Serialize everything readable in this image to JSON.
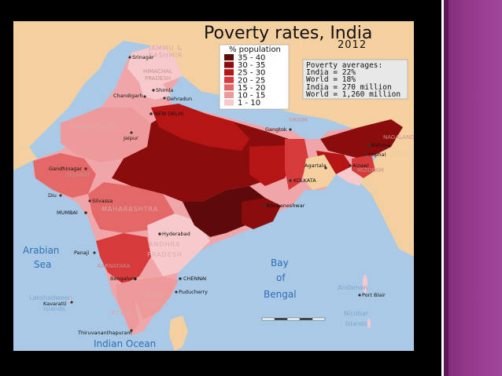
{
  "map": {
    "title": "Poverty rates, India",
    "year": "2012",
    "legend": {
      "title": "% population",
      "items": [
        {
          "label": "35 - 40",
          "color": "#5e0a0a"
        },
        {
          "label": "30 - 35",
          "color": "#8b0c0c"
        },
        {
          "label": "25 - 30",
          "color": "#b51515"
        },
        {
          "label": "20 - 25",
          "color": "#d63a3a"
        },
        {
          "label": "15 - 20",
          "color": "#e46868"
        },
        {
          "label": "10 - 15",
          "color": "#ee9a9a"
        },
        {
          "label": "1 - 10",
          "color": "#f6c9cc"
        }
      ]
    },
    "averages": {
      "title": "Poverty averages:",
      "line1": "India = 22%",
      "line2": "World = 18%",
      "line3": "India  =    270 million",
      "line4": "World = 1,260 million"
    },
    "cities": {
      "srinagar": "Srinagar",
      "shimla": "Shimla",
      "chandigarh": "Chandigarh",
      "dehradun": "Dehradun",
      "new_delhi": "NEW DELHI",
      "jaipur": "Jaipur",
      "gangtok": "Gangtok",
      "kohima": "Kohima",
      "imphal": "Imphal",
      "agartala": "Agartala",
      "aizawl": "Aizawl",
      "kolkata": "KOLKATA",
      "gandhinagar": "Gandhinagar",
      "diu": "Diu",
      "silvassa": "Silvassa",
      "mumbai": "MUMBAI",
      "bhubaneshwar": "Bhubaneshwar",
      "hyderabad": "Hyderabad",
      "panaji": "Panaji",
      "bengaluru": "Bengaluru",
      "chennai": "CHENNAI",
      "puducherry": "Puducherry",
      "kavaratti": "Kavaratti",
      "thiruvananthapuram": "Thiruvananthapuram",
      "port_blair": "Port Blair"
    },
    "regions": {
      "jammu": "JAMMU &",
      "kashmir": "KASHMIR",
      "himachal": "HIMACHAL",
      "pradesh_hp": "PRADESH",
      "rajasthan": "RAJASTHAN",
      "gujarat": "GUJARAT",
      "maharashtra": "MAHARASHTRA",
      "andhra": "ANDHRA",
      "pradesh_ap": "PRADESH",
      "karnataka": "KARNATAKA",
      "tamil": "TAMIL",
      "nadu": "NADU",
      "kerala": "KERALA",
      "sikkim": "SIKKIM",
      "nagaland": "NAGALAND",
      "mizoram": "MIZORAM",
      "lakshadweep": "Lakshadweep",
      "islands": "Islands",
      "andaman": "Andaman",
      "nicobar": "Nicobar",
      "islands2": "Islands"
    },
    "seas": {
      "arabian": "Arabian",
      "sea": "Sea",
      "bay": "Bay",
      "of": "of",
      "bengal": "Bengal",
      "indian_ocean": "Indian Ocean"
    }
  }
}
